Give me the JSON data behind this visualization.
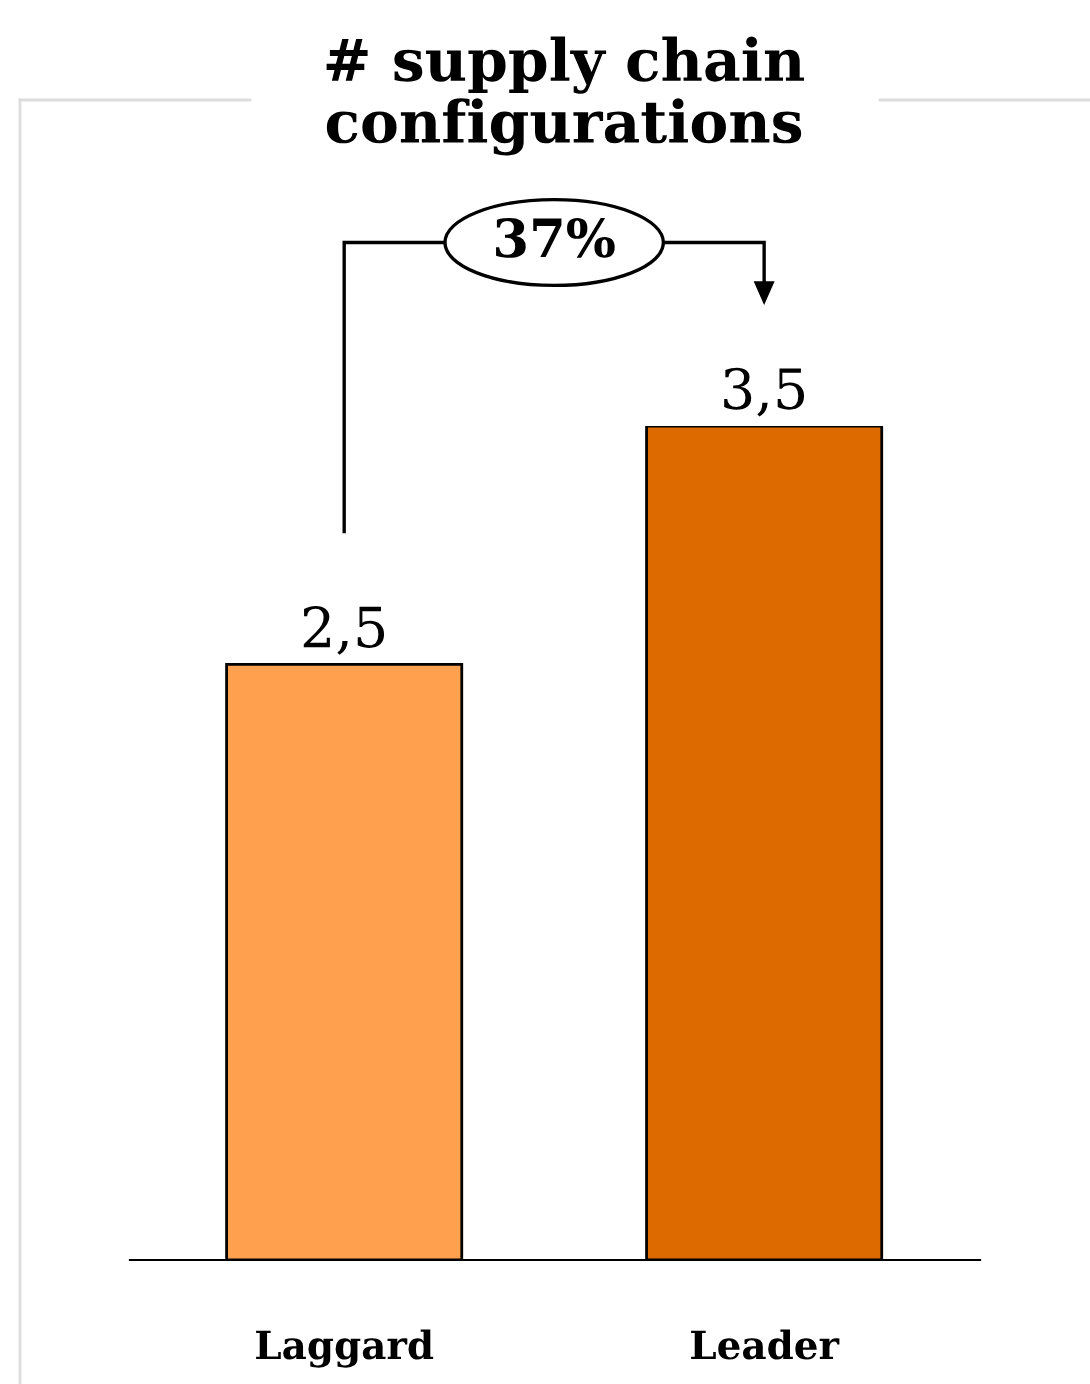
{
  "chart_data": {
    "type": "bar",
    "title": "# supply chain\nconfigurations",
    "categories": [
      "Laggard",
      "Leader"
    ],
    "values": [
      2.5,
      3.5
    ],
    "value_labels": [
      "2,5",
      "3,5"
    ],
    "colors": [
      "#ffa04f",
      "#dd6a00"
    ],
    "annotations": [
      "37%"
    ],
    "grid": false,
    "legend": false
  }
}
